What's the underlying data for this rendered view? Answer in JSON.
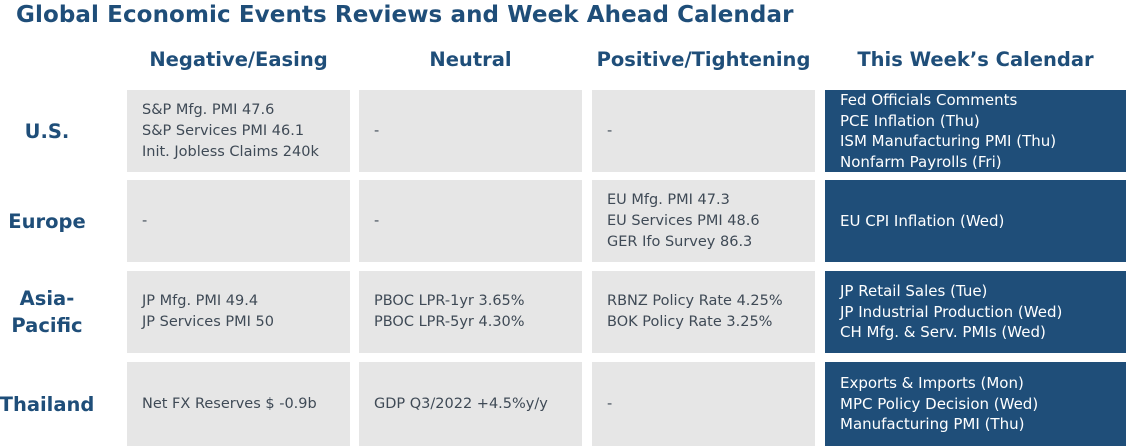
{
  "title": "Global Economic Events Reviews and Week Ahead Calendar",
  "columns": [
    "Negative/Easing",
    "Neutral",
    "Positive/Tightening",
    "This Week’s Calendar"
  ],
  "rows": [
    {
      "label": "U.S.",
      "cells": [
        [
          "S&P Mfg. PMI 47.6",
          "S&P Services PMI 46.1",
          "Init. Jobless Claims 240k"
        ],
        [
          "-"
        ],
        [
          "-"
        ],
        [
          "Fed Officials Comments",
          "PCE Inflation (Thu)",
          "ISM Manufacturing PMI (Thu)",
          "Nonfarm Payrolls (Fri)"
        ]
      ]
    },
    {
      "label": "Europe",
      "cells": [
        [
          "-"
        ],
        [
          "-"
        ],
        [
          "EU Mfg. PMI 47.3",
          "EU Services PMI 48.6",
          "GER Ifo Survey 86.3"
        ],
        [
          "EU CPI Inflation (Wed)"
        ]
      ]
    },
    {
      "label": "Asia-Pacific",
      "label_lines": [
        "Asia-",
        "Pacific"
      ],
      "cells": [
        [
          "JP Mfg. PMI 49.4",
          "JP Services PMI 50"
        ],
        [
          "PBOC LPR-1yr 3.65%",
          "PBOC LPR-5yr 4.30%"
        ],
        [
          "RBNZ Policy Rate 4.25%",
          "BOK Policy Rate 3.25%"
        ],
        [
          "JP Retail Sales (Tue)",
          "JP Industrial Production (Wed)",
          "CH Mfg. & Serv. PMIs (Wed)"
        ]
      ]
    },
    {
      "label": "Thailand",
      "cells": [
        [
          "Net FX Reserves $ -0.9b"
        ],
        [
          "GDP Q3/2022 +4.5%y/y"
        ],
        [
          "-"
        ],
        [
          "Exports & Imports (Mon)",
          "MPC Policy Decision (Wed)",
          "Manufacturing PMI (Thu)"
        ]
      ]
    }
  ],
  "colors": {
    "heading": "#1f4e79",
    "cell_bg": "#e6e6e6",
    "calendar_bg": "#1f4e79",
    "cell_text": "#3f4a56",
    "calendar_text": "#ffffff"
  }
}
